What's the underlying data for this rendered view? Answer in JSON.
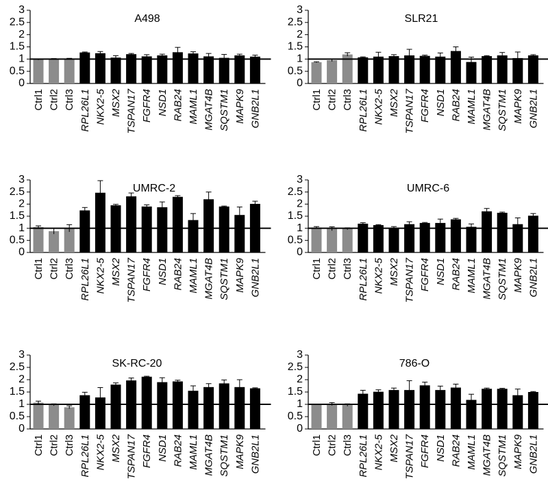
{
  "chart_data": [
    {
      "type": "bar",
      "title": "A498",
      "xlabel": "",
      "ylabel": "",
      "ylim": [
        0,
        3
      ],
      "yticks": [
        "0",
        "0.5",
        "1",
        "1.5",
        "2",
        "2.5",
        "3"
      ],
      "reference_line": 1,
      "categories": [
        "Ctrl1",
        "Ctrl2",
        "Ctrl3",
        "RPL26L1",
        "NKX2-5",
        "MSX2",
        "TSPAN17",
        "FGFR4",
        "NSD1",
        "RAB24",
        "MAML1",
        "MGAT4B",
        "SQSTM1",
        "MAPK9",
        "GNB2L1"
      ],
      "values": [
        0.98,
        1.0,
        1.01,
        1.27,
        1.24,
        1.06,
        1.2,
        1.11,
        1.15,
        1.28,
        1.23,
        1.11,
        1.05,
        1.15,
        1.1
      ],
      "errors": [
        0.02,
        0.02,
        0.02,
        0.02,
        0.07,
        0.08,
        0.03,
        0.07,
        0.05,
        0.2,
        0.07,
        0.12,
        0.14,
        0.05,
        0.06
      ],
      "bar_colors": [
        "#8c8c8c",
        "#8c8c8c",
        "#8c8c8c",
        "#000000",
        "#000000",
        "#000000",
        "#000000",
        "#000000",
        "#000000",
        "#000000",
        "#000000",
        "#000000",
        "#000000",
        "#000000",
        "#000000"
      ]
    },
    {
      "type": "bar",
      "title": "SLR21",
      "xlabel": "",
      "ylabel": "",
      "ylim": [
        0,
        3
      ],
      "yticks": [
        "0",
        "0.5",
        "1",
        "1.5",
        "2",
        "2.5",
        "3"
      ],
      "reference_line": 1,
      "categories": [
        "Ctrl1",
        "Ctrl2",
        "Ctrl3",
        "RPL26L1",
        "NKX2-5",
        "MSX2",
        "TSPAN17",
        "FGFR4",
        "NSD1",
        "RAB24",
        "MAML1",
        "MGAT4B",
        "SQSTM1",
        "MAPK9",
        "GNB2L1"
      ],
      "values": [
        0.87,
        0.95,
        1.19,
        1.07,
        1.1,
        1.12,
        1.15,
        1.13,
        1.1,
        1.33,
        0.88,
        1.12,
        1.15,
        1.04,
        1.15
      ],
      "errors": [
        0.02,
        0.05,
        0.07,
        0.02,
        0.18,
        0.06,
        0.25,
        0.03,
        0.15,
        0.17,
        0.2,
        0.02,
        0.12,
        0.25,
        0.03
      ],
      "bar_colors": [
        "#8c8c8c",
        "#8c8c8c",
        "#8c8c8c",
        "#000000",
        "#000000",
        "#000000",
        "#000000",
        "#000000",
        "#000000",
        "#000000",
        "#000000",
        "#000000",
        "#000000",
        "#000000",
        "#000000"
      ]
    },
    {
      "type": "bar",
      "title": "UMRC-2",
      "xlabel": "",
      "ylabel": "",
      "ylim": [
        0,
        3
      ],
      "yticks": [
        "0",
        "0.5",
        "1",
        "1.5",
        "2",
        "2.5",
        "3"
      ],
      "reference_line": 1,
      "categories": [
        "Ctrl1",
        "Ctrl2",
        "Ctrl3",
        "RPL26L1",
        "NKX2-5",
        "MSX2",
        "TSPAN17",
        "FGFR4",
        "NSD1",
        "RAB24",
        "MAML1",
        "MGAT4B",
        "SQSTM1",
        "MAPK9",
        "GNB2L1"
      ],
      "values": [
        1.05,
        0.88,
        1.0,
        1.74,
        2.47,
        1.95,
        2.32,
        1.9,
        1.87,
        2.3,
        1.34,
        2.2,
        1.9,
        1.55,
        2.01
      ],
      "errors": [
        0.05,
        0.12,
        0.15,
        0.12,
        0.5,
        0.04,
        0.14,
        0.07,
        0.22,
        0.05,
        0.27,
        0.3,
        0.02,
        0.33,
        0.11
      ],
      "bar_colors": [
        "#8c8c8c",
        "#8c8c8c",
        "#8c8c8c",
        "#000000",
        "#000000",
        "#000000",
        "#000000",
        "#000000",
        "#000000",
        "#000000",
        "#000000",
        "#000000",
        "#000000",
        "#000000",
        "#000000"
      ]
    },
    {
      "type": "bar",
      "title": "UMRC-6",
      "xlabel": "",
      "ylabel": "",
      "ylim": [
        0,
        3
      ],
      "yticks": [
        "0",
        "0.5",
        "1",
        "1.5",
        "2",
        "2.5",
        "3"
      ],
      "reference_line": 1,
      "categories": [
        "Ctrl1",
        "Ctrl2",
        "Ctrl3",
        "RPL26L1",
        "NKX2-5",
        "MSX2",
        "TSPAN17",
        "FGFR4",
        "NSD1",
        "RAB24",
        "MAML1",
        "MGAT4B",
        "SQSTM1",
        "MAPK9",
        "GNB2L1"
      ],
      "values": [
        1.03,
        0.98,
        0.98,
        1.19,
        1.13,
        1.02,
        1.17,
        1.22,
        1.22,
        1.37,
        1.06,
        1.7,
        1.64,
        1.17,
        1.52
      ],
      "errors": [
        0.04,
        0.08,
        0.04,
        0.04,
        0.02,
        0.05,
        0.1,
        0.02,
        0.16,
        0.04,
        0.12,
        0.12,
        0.03,
        0.26,
        0.09
      ],
      "bar_colors": [
        "#8c8c8c",
        "#8c8c8c",
        "#8c8c8c",
        "#000000",
        "#000000",
        "#000000",
        "#000000",
        "#000000",
        "#000000",
        "#000000",
        "#000000",
        "#000000",
        "#000000",
        "#000000",
        "#000000"
      ]
    },
    {
      "type": "bar",
      "title": "SK-RC-20",
      "xlabel": "",
      "ylabel": "",
      "ylim": [
        0,
        3
      ],
      "yticks": [
        "0",
        "0.5",
        "1",
        "1.5",
        "2",
        "2.5",
        "3"
      ],
      "reference_line": 1,
      "categories": [
        "Ctrl1",
        "Ctrl2",
        "Ctrl3",
        "RPL26L1",
        "NKX2-5",
        "MSX2",
        "TSPAN17",
        "FGFR4",
        "NSD1",
        "RAB24",
        "MAML1",
        "MGAT4B",
        "SQSTM1",
        "MAPK9",
        "GNB2L1"
      ],
      "values": [
        1.07,
        0.98,
        0.88,
        1.37,
        1.28,
        1.8,
        1.97,
        2.12,
        1.9,
        1.93,
        1.55,
        1.7,
        1.85,
        1.7,
        1.65
      ],
      "errors": [
        0.06,
        0.04,
        0.06,
        0.12,
        0.4,
        0.07,
        0.1,
        0.02,
        0.18,
        0.05,
        0.2,
        0.14,
        0.14,
        0.3,
        0.02
      ],
      "bar_colors": [
        "#8c8c8c",
        "#8c8c8c",
        "#8c8c8c",
        "#000000",
        "#000000",
        "#000000",
        "#000000",
        "#000000",
        "#000000",
        "#000000",
        "#000000",
        "#000000",
        "#000000",
        "#000000",
        "#000000"
      ]
    },
    {
      "type": "bar",
      "title": "786-O",
      "xlabel": "",
      "ylabel": "",
      "ylim": [
        0,
        3
      ],
      "yticks": [
        "0",
        "0.5",
        "1",
        "1.5",
        "2",
        "2.5",
        "3"
      ],
      "reference_line": 1,
      "categories": [
        "Ctrl1",
        "Ctrl2",
        "Ctrl3",
        "RPL26L1",
        "NKX2-5",
        "MSX2",
        "TSPAN17",
        "FGFR4",
        "NSD1",
        "RAB24",
        "MAML1",
        "MGAT4B",
        "SQSTM1",
        "MAPK9",
        "GNB2L1"
      ],
      "values": [
        1.0,
        1.01,
        0.97,
        1.43,
        1.51,
        1.58,
        1.58,
        1.77,
        1.58,
        1.68,
        1.18,
        1.63,
        1.63,
        1.37,
        1.5
      ],
      "errors": [
        0.01,
        0.06,
        0.05,
        0.14,
        0.08,
        0.08,
        0.38,
        0.13,
        0.16,
        0.14,
        0.23,
        0.03,
        0.02,
        0.25,
        0.02
      ],
      "bar_colors": [
        "#8c8c8c",
        "#8c8c8c",
        "#8c8c8c",
        "#000000",
        "#000000",
        "#000000",
        "#000000",
        "#000000",
        "#000000",
        "#000000",
        "#000000",
        "#000000",
        "#000000",
        "#000000",
        "#000000"
      ]
    }
  ]
}
